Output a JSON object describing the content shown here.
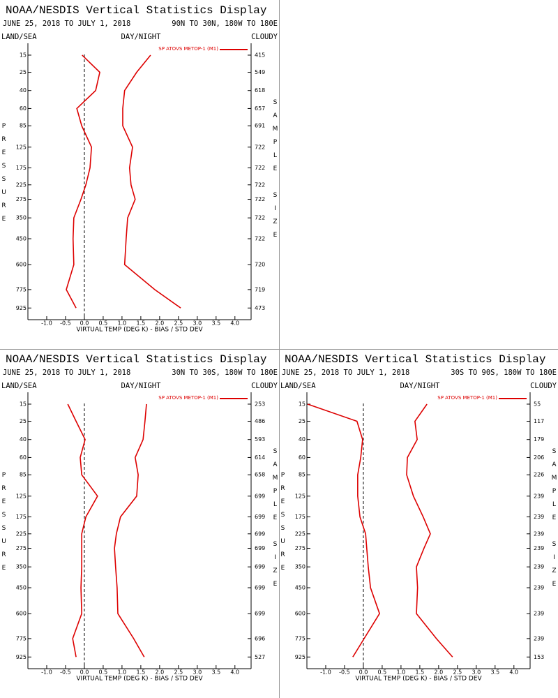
{
  "chart_data": [
    {
      "type": "line",
      "title": "NOAA/NESDIS Vertical Statistics Display",
      "date_range": "JUNE 25, 2018 TO JULY 1, 2018",
      "region": "90N TO 30N, 180W TO 180E",
      "left_header": "LAND/SEA",
      "center_header": "DAY/NIGHT",
      "right_header": "CLOUDY",
      "y_label": "PRESSURE",
      "y2_label": "SAMPLE SIZE",
      "x_label": "VIRTUAL TEMP (DEG K) - BIAS / STD DEV",
      "y": [
        15,
        25,
        40,
        60,
        85,
        125,
        175,
        225,
        275,
        350,
        450,
        600,
        775,
        925
      ],
      "sample_size": [
        415,
        549,
        618,
        657,
        691,
        722,
        722,
        722,
        722,
        722,
        722,
        720,
        719,
        473
      ],
      "series": [
        {
          "name": "SP ATOVS METOP-1 (M1)",
          "color": "#dd0000",
          "bias": [
            -0.06,
            0.41,
            0.3,
            -0.2,
            -0.07,
            0.19,
            0.15,
            0.04,
            -0.09,
            -0.28,
            -0.3,
            -0.28,
            -0.48,
            -0.22
          ],
          "std_dev": [
            1.76,
            1.39,
            1.07,
            1.02,
            1.02,
            1.28,
            1.2,
            1.24,
            1.35,
            1.15,
            1.11,
            1.07,
            1.87,
            2.56
          ]
        }
      ],
      "xlim": [
        -1.5,
        4.43
      ],
      "xticks": [
        {
          "value": -1,
          "label": "-1.0"
        },
        -0.5,
        {
          "value": 0,
          "label": "0.0"
        },
        0.5,
        {
          "value": 1,
          "label": "1.0"
        },
        1.5,
        {
          "value": 2,
          "label": "2.0"
        },
        2.5,
        {
          "value": 3,
          "label": "3.0"
        },
        3.5,
        {
          "value": 4,
          "label": "4.0"
        }
      ],
      "ylim": [
        10,
        1030
      ],
      "yticks": [
        15,
        25,
        40,
        60,
        85,
        125,
        175,
        225,
        275,
        350,
        450,
        600,
        775,
        925
      ]
    },
    {
      "type": "line",
      "title": "NOAA/NESDIS Vertical Statistics Display",
      "date_range": "JUNE 25, 2018 TO JULY 1, 2018",
      "region": "30N TO 30S, 180W TO 180E",
      "left_header": "LAND/SEA",
      "center_header": "DAY/NIGHT",
      "right_header": "CLOUDY",
      "y_label": "PRESSURE",
      "y2_label": "SAMPLE SIZE",
      "x_label": "VIRTUAL TEMP (DEG K) - BIAS / STD DEV",
      "y": [
        15,
        25,
        40,
        60,
        85,
        125,
        175,
        225,
        275,
        350,
        450,
        600,
        775,
        925
      ],
      "sample_size": [
        253,
        486,
        593,
        614,
        658,
        699,
        699,
        699,
        699,
        699,
        699,
        699,
        696,
        527
      ],
      "series": [
        {
          "name": "SP ATOVS METOP-1 (M1)",
          "color": "#dd0000",
          "bias": [
            -0.44,
            -0.22,
            0.02,
            -0.11,
            -0.07,
            0.35,
            0.04,
            -0.07,
            -0.07,
            -0.07,
            -0.09,
            -0.07,
            -0.31,
            -0.22
          ],
          "std_dev": [
            1.65,
            1.61,
            1.56,
            1.35,
            1.43,
            1.39,
            0.96,
            0.85,
            0.8,
            0.83,
            0.87,
            0.89,
            1.31,
            1.59
          ]
        }
      ],
      "xlim": [
        -1.5,
        4.43
      ],
      "xticks": [
        {
          "value": -1,
          "label": "-1.0"
        },
        -0.5,
        {
          "value": 0,
          "label": "0.0"
        },
        0.5,
        {
          "value": 1,
          "label": "1.0"
        },
        1.5,
        {
          "value": 2,
          "label": "2.0"
        },
        2.5,
        {
          "value": 3,
          "label": "3.0"
        },
        3.5,
        {
          "value": 4,
          "label": "4.0"
        }
      ],
      "ylim": [
        10,
        1030
      ],
      "yticks": [
        15,
        25,
        40,
        60,
        85,
        125,
        175,
        225,
        275,
        350,
        450,
        600,
        775,
        925
      ]
    },
    {
      "type": "line",
      "title": "NOAA/NESDIS Vertical Statistics Display",
      "date_range": "JUNE 25, 2018 TO JULY 1, 2018",
      "region": "30S TO 90S, 180W TO 180E",
      "left_header": "LAND/SEA",
      "center_header": "DAY/NIGHT",
      "right_header": "CLOUDY",
      "y_label": "PRESSURE",
      "y2_label": "SAMPLE SIZE",
      "x_label": "VIRTUAL TEMP (DEG K) - BIAS / STD DEV",
      "y": [
        15,
        25,
        40,
        60,
        85,
        125,
        175,
        225,
        275,
        350,
        450,
        600,
        775,
        925
      ],
      "sample_size": [
        55,
        117,
        179,
        206,
        226,
        239,
        239,
        239,
        239,
        239,
        239,
        239,
        239,
        153
      ],
      "series": [
        {
          "name": "SP ATOVS METOP-1 (M1)",
          "color": "#dd0000",
          "bias": [
            -1.48,
            -0.17,
            -0.02,
            -0.07,
            -0.15,
            -0.15,
            -0.09,
            0.06,
            0.09,
            0.13,
            0.19,
            0.43,
            0.02,
            -0.28
          ],
          "std_dev": [
            1.69,
            1.37,
            1.43,
            1.17,
            1.15,
            1.33,
            1.59,
            1.78,
            1.61,
            1.41,
            1.44,
            1.41,
            1.94,
            2.37
          ]
        }
      ],
      "xlim": [
        -1.5,
        4.43
      ],
      "xticks": [
        {
          "value": -1,
          "label": "-1.0"
        },
        -0.5,
        {
          "value": 0,
          "label": "0.0"
        },
        0.5,
        {
          "value": 1,
          "label": "1.0"
        },
        1.5,
        {
          "value": 2,
          "label": "2.0"
        },
        2.5,
        {
          "value": 3,
          "label": "3.0"
        },
        3.5,
        {
          "value": 4,
          "label": "4.0"
        }
      ],
      "ylim": [
        10,
        1030
      ],
      "yticks": [
        15,
        25,
        40,
        60,
        85,
        125,
        175,
        225,
        275,
        350,
        450,
        600,
        775,
        925
      ]
    }
  ]
}
